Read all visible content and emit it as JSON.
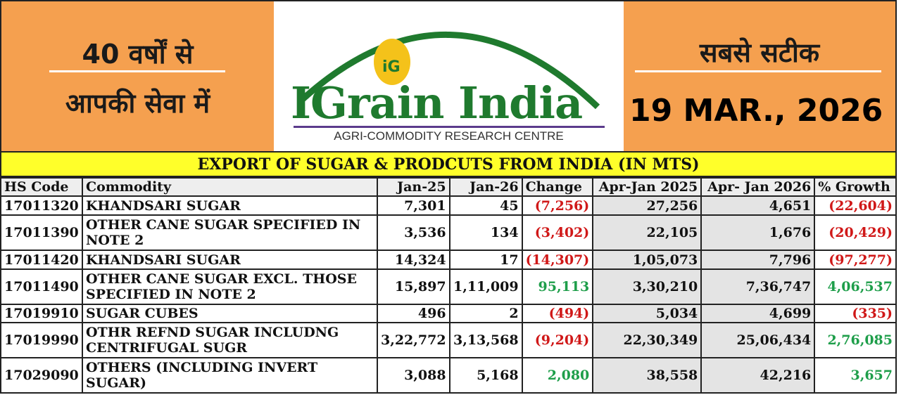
{
  "header": {
    "left_line1": "40 वर्षों से",
    "left_line2": "आपकी सेवा में",
    "brand": "IGrain India",
    "logo_badge": "iG",
    "tagline": "AGRI-COMMODITY RESEARCH CENTRE",
    "right_line1": "सबसे सटीक",
    "date": "19 MAR., 2026",
    "colors": {
      "orange": "#f5a04f",
      "brand_green": "#1f7a2e",
      "title_yellow": "#ffff2a"
    }
  },
  "table": {
    "title": "EXPORT OF SUGAR & PRODCUTS FROM INDIA (IN MTS)",
    "columns": [
      "HS Code",
      "Commodity",
      "Jan-25",
      "Jan-26",
      "Change",
      "Apr-Jan 2025",
      "Apr- Jan 2026",
      "% Growth"
    ],
    "rows": [
      [
        "17011320",
        "KHANDSARI SUGAR",
        "7,301",
        "45",
        "(7,256)",
        "27,256",
        "4,651",
        "(22,604)"
      ],
      [
        "17011390",
        "OTHER CANE SUGAR SPECIFIED IN NOTE 2",
        "3,536",
        "134",
        "(3,402)",
        "22,105",
        "1,676",
        "(20,429)"
      ],
      [
        "17011420",
        "KHANDSARI SUGAR",
        "14,324",
        "17",
        "(14,307)",
        "1,05,073",
        "7,796",
        "(97,277)"
      ],
      [
        "17011490",
        "OTHER CANE SUGAR EXCL. THOSE SPECIFIED IN NOTE 2",
        "15,897",
        "1,11,009",
        "95,113",
        "3,30,210",
        "7,36,747",
        "4,06,537"
      ],
      [
        "17019910",
        "SUGAR CUBES",
        "496",
        "2",
        "(494)",
        "5,034",
        "4,699",
        "(335)"
      ],
      [
        "17019990",
        "OTHR REFND SUGAR INCLUDNG CENTRIFUGAL SUGR",
        "3,22,772",
        "3,13,568",
        "(9,204)",
        "22,30,349",
        "25,06,434",
        "2,76,085"
      ],
      [
        "17029090",
        "OTHERS (INCLUDING INVERT SUGAR)",
        "3,088",
        "5,168",
        "2,080",
        "38,558",
        "42,216",
        "3,657"
      ]
    ]
  }
}
